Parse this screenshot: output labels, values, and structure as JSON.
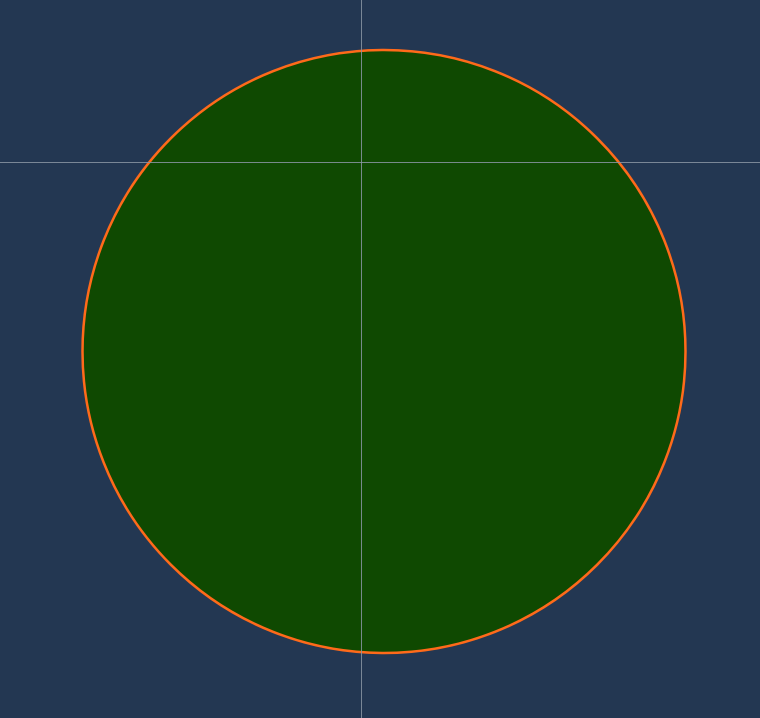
{
  "canvas": {
    "background_color": "#233752",
    "crosshair_color": "#8a95a3"
  },
  "shape": {
    "kind": "circle",
    "fill_color": "#0f4901",
    "stroke_color": "#ff6a1a",
    "selected": true
  }
}
